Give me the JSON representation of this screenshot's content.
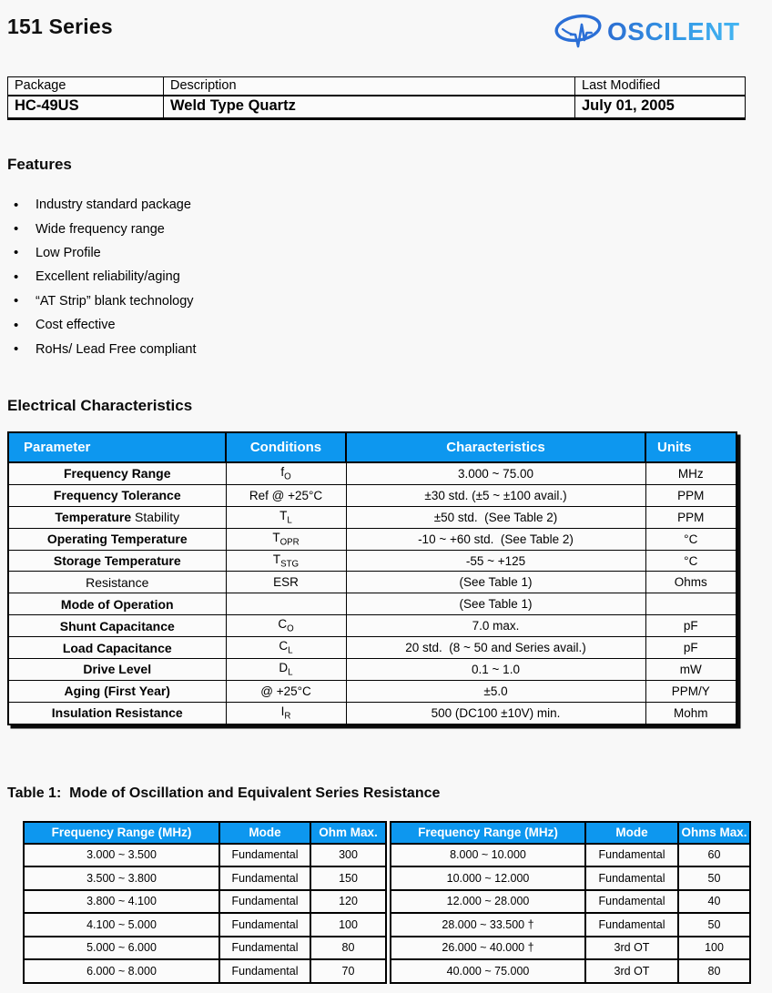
{
  "page": {
    "title": "151 Series"
  },
  "logo": {
    "text": "OSCILENT",
    "brand_blue_dark": "#2c6ed2",
    "brand_blue_light": "#45b6f2"
  },
  "colors": {
    "table_header_blue": "#0d97ef",
    "table_header_text": "#ffffff"
  },
  "info_table": {
    "headers": [
      "Package",
      "Description",
      "Last Modified"
    ],
    "values": [
      "HC-49US",
      "Weld Type Quartz",
      "July 01, 2005"
    ]
  },
  "features": {
    "heading": "Features",
    "items": [
      "Industry standard package",
      "Wide frequency range",
      "Low Profile",
      "Excellent reliability/aging",
      "“AT Strip” blank technology",
      "Cost effective",
      "RoHs/ Lead Free compliant"
    ]
  },
  "electrical": {
    "heading": "Electrical Characteristics",
    "columns": [
      "Parameter",
      "Conditions",
      "Characteristics",
      "Units"
    ],
    "rows": [
      {
        "param_bold": "Frequency Range",
        "cond": "f",
        "cond_sub": "O",
        "characteristics": "3.000 ~ 75.00",
        "units": "MHz"
      },
      {
        "param_bold": "Frequency Tolerance",
        "cond": "Ref @ +25°C",
        "characteristics": "±30 std. (±5 ~ ±100 avail.)",
        "units": "PPM"
      },
      {
        "param_bold": "Temperature",
        "param_reg": " Stability",
        "cond": "T",
        "cond_sub": "L",
        "characteristics": "±50 std.  (See Table 2)",
        "units": "PPM"
      },
      {
        "param_bold": "Operating Temperature",
        "cond": "T",
        "cond_sub": "OPR",
        "characteristics": "-10 ~ +60 std.  (See Table 2)",
        "units": "°C"
      },
      {
        "param_bold": "Storage Temperature",
        "cond": "T",
        "cond_sub": "STG",
        "characteristics": "-55 ~ +125",
        "units": "°C"
      },
      {
        "param_reg": "Resistance",
        "cond": "ESR",
        "characteristics": "(See Table 1)",
        "units": "Ohms"
      },
      {
        "param_bold": "Mode of Operation",
        "cond": "",
        "characteristics": "(See Table 1)",
        "units": ""
      },
      {
        "param_bold": "Shunt Capacitance",
        "cond": "C",
        "cond_sub": "O",
        "characteristics": "7.0 max.",
        "units": "pF"
      },
      {
        "param_bold": "Load Capacitance",
        "cond": "C",
        "cond_sub": "L",
        "characteristics": "20 std.  (8 ~ 50 and Series avail.)",
        "units": "pF"
      },
      {
        "param_bold": "Drive Level",
        "cond": "D",
        "cond_sub": "L",
        "characteristics": "0.1 ~ 1.0",
        "units": "mW"
      },
      {
        "param_bold": "Aging (First Year)",
        "cond": "@ +25°C",
        "characteristics": "±5.0",
        "units": "PPM/Y"
      },
      {
        "param_bold": "Insulation Resistance",
        "cond": "I",
        "cond_sub": "R",
        "characteristics": "500 (DC100 ±10V) min.",
        "units": "Mohm"
      }
    ]
  },
  "table1": {
    "heading": "Table 1:  Mode of Oscillation and Equivalent Series Resistance",
    "columns": [
      "Frequency Range (MHz)",
      "Mode",
      "Ohm Max.",
      "Frequency Range (MHz)",
      "Mode",
      "Ohms Max."
    ],
    "rows": [
      [
        "3.000 ~ 3.500",
        "Fundamental",
        "300",
        "8.000 ~ 10.000",
        "Fundamental",
        "60"
      ],
      [
        "3.500 ~ 3.800",
        "Fundamental",
        "150",
        "10.000 ~ 12.000",
        "Fundamental",
        "50"
      ],
      [
        "3.800 ~ 4.100",
        "Fundamental",
        "120",
        "12.000 ~ 28.000",
        "Fundamental",
        "40"
      ],
      [
        "4.100 ~ 5.000",
        "Fundamental",
        "100",
        "28.000 ~ 33.500 †",
        "Fundamental",
        "50"
      ],
      [
        "5.000 ~ 6.000",
        "Fundamental",
        "80",
        "26.000 ~ 40.000 †",
        "3rd OT",
        "100"
      ],
      [
        "6.000 ~ 8.000",
        "Fundamental",
        "70",
        "40.000 ~ 75.000",
        "3rd OT",
        "80"
      ]
    ]
  }
}
